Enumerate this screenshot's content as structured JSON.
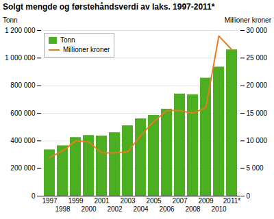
{
  "chart_data": {
    "type": "bar",
    "title": "Solgt mengde og førstehåndsverdi av laks. 1997-2011*",
    "categories": [
      "1997",
      "1998",
      "1999",
      "2000",
      "2001",
      "2002",
      "2003",
      "2004",
      "2005",
      "2006",
      "2007",
      "2008",
      "2009",
      "2010",
      "2011*"
    ],
    "series": [
      {
        "name": "Tonn",
        "type": "bar",
        "color": "#4caf22",
        "values": [
          335000,
          365000,
          425000,
          440000,
          435000,
          460000,
          510000,
          560000,
          585000,
          630000,
          740000,
          735000,
          855000,
          935000,
          1060000
        ]
      },
      {
        "name": "Millioner kroner",
        "type": "line",
        "color": "#e87b1e",
        "axis": "y2",
        "values": [
          7000,
          8200,
          10000,
          9800,
          7800,
          7800,
          8000,
          11000,
          13500,
          15500,
          15500,
          15000,
          16000,
          29000,
          26500
        ]
      }
    ],
    "ylabel": "Tonn",
    "y2label": "Millioner kroner",
    "ylim": [
      0,
      1200000
    ],
    "yticks": [
      0,
      {
        "value": 200000,
        "label": "200 000"
      },
      {
        "value": 400000,
        "label": "400 000"
      },
      {
        "value": 600000,
        "label": "600 000"
      },
      {
        "value": 800000,
        "label": "800 000"
      },
      {
        "value": 1000000,
        "label": "1 000 000"
      },
      {
        "value": 1200000,
        "label": "1 200 000"
      }
    ],
    "y2lim": [
      0,
      30000
    ],
    "y2ticks": [
      0,
      {
        "value": 5000,
        "label": "5 000"
      },
      {
        "value": 10000,
        "label": "10 000"
      },
      {
        "value": 15000,
        "label": "15 000"
      },
      {
        "value": 20000,
        "label": "20 000"
      },
      {
        "value": 25000,
        "label": "25 000"
      },
      {
        "value": 30000,
        "label": "30 000"
      }
    ],
    "grid": true,
    "legend": "upper left"
  }
}
